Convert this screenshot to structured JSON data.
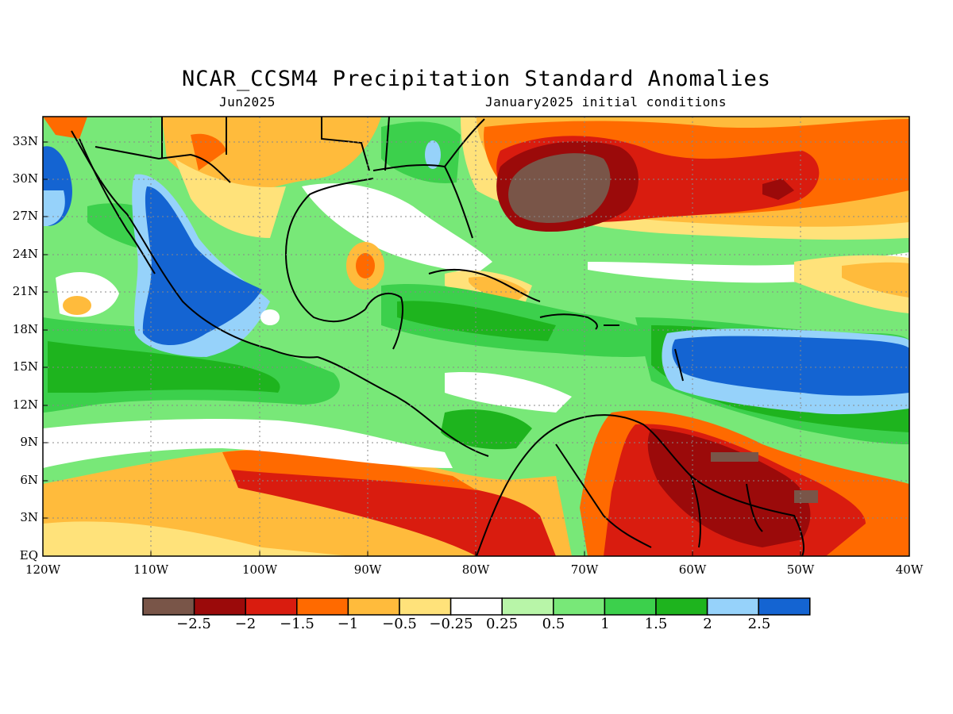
{
  "title": "NCAR_CCSM4 Precipitation Standard Anomalies",
  "subtitle_left": "Jun2025",
  "subtitle_right": "January2025 initial conditions",
  "lat_ticks": [
    "33N",
    "30N",
    "27N",
    "24N",
    "21N",
    "18N",
    "15N",
    "12N",
    "9N",
    "6N",
    "3N",
    "EQ"
  ],
  "lon_ticks": [
    "120W",
    "110W",
    "100W",
    "90W",
    "80W",
    "70W",
    "60W",
    "50W",
    "40W"
  ],
  "colorbar": {
    "colors": [
      "#795548",
      "#9b0a0a",
      "#d91c0f",
      "#ff6a00",
      "#ffbb3c",
      "#ffe27a",
      "#ffffff",
      "#b8f5a8",
      "#78e878",
      "#3cd04c",
      "#1eb41e",
      "#96d2fa",
      "#1464d2"
    ],
    "labels": [
      "−2.5",
      "−2",
      "−1.5",
      "−1",
      "−0.5",
      "−0.25",
      "0.25",
      "0.5",
      "1",
      "1.5",
      "2",
      "2.5"
    ]
  }
}
